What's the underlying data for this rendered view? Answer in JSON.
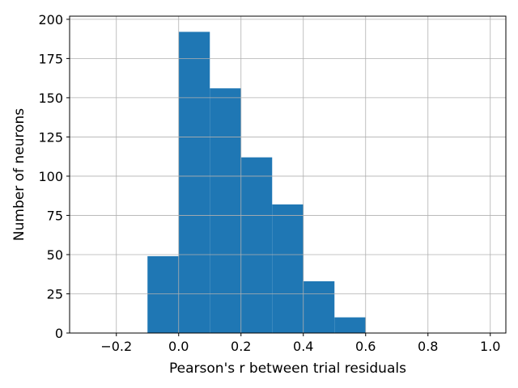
{
  "chart_data": {
    "type": "bar",
    "subtype": "histogram",
    "title": "",
    "xlabel": "Pearson's r between trial residuals",
    "ylabel": "Number of neurons",
    "xlim": [
      -0.35,
      1.05
    ],
    "ylim": [
      0,
      202
    ],
    "x_ticks": [
      -0.2,
      0.0,
      0.2,
      0.4,
      0.6,
      0.8,
      1.0
    ],
    "x_tick_labels": [
      "−0.2",
      "0.0",
      "0.2",
      "0.4",
      "0.6",
      "0.8",
      "1.0"
    ],
    "y_ticks": [
      0,
      25,
      50,
      75,
      100,
      125,
      150,
      175,
      200
    ],
    "y_tick_labels": [
      "0",
      "25",
      "50",
      "75",
      "100",
      "125",
      "150",
      "175",
      "200"
    ],
    "bins": [
      {
        "x0": -0.1,
        "x1": 0.0,
        "count": 49
      },
      {
        "x0": 0.0,
        "x1": 0.1,
        "count": 192
      },
      {
        "x0": 0.1,
        "x1": 0.2,
        "count": 156
      },
      {
        "x0": 0.2,
        "x1": 0.3,
        "count": 112
      },
      {
        "x0": 0.3,
        "x1": 0.4,
        "count": 82
      },
      {
        "x0": 0.4,
        "x1": 0.5,
        "count": 33
      },
      {
        "x0": 0.5,
        "x1": 0.6,
        "count": 10
      }
    ],
    "grid": true,
    "bar_color": "#1f77b4",
    "grid_color": "#b0b0b0"
  }
}
